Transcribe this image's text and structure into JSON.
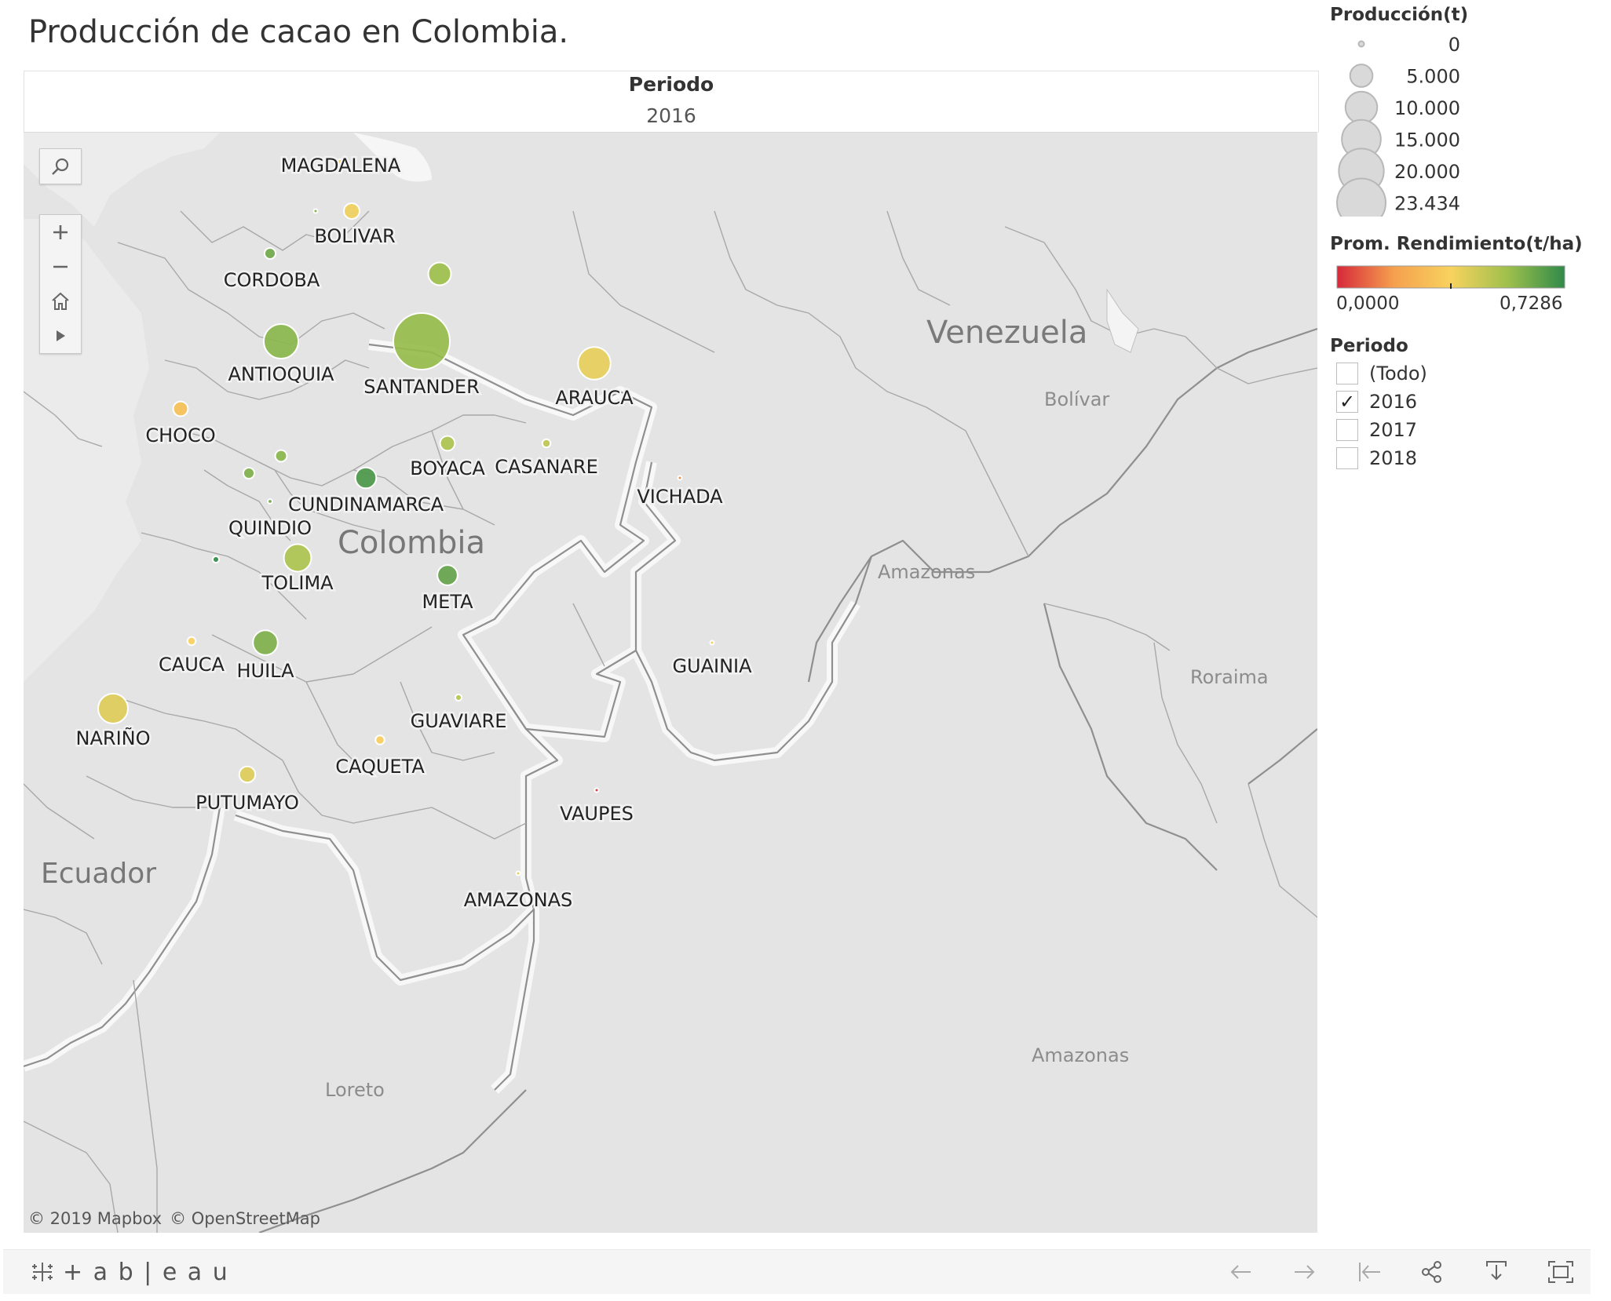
{
  "title": "Producción de cacao en Colombia.",
  "period_header": {
    "label": "Periodo",
    "value": "2016"
  },
  "map": {
    "country_labels": [
      {
        "id": "venezuela",
        "text": "Venezuela"
      },
      {
        "id": "colombia",
        "text": "Colombia"
      },
      {
        "id": "ecuador",
        "text": "Ecuador"
      }
    ],
    "region_labels": [
      {
        "id": "bolivar-ve",
        "text": "Bolívar"
      },
      {
        "id": "amazonas-ve",
        "text": "Amazonas"
      },
      {
        "id": "roraima",
        "text": "Roraima"
      },
      {
        "id": "amazonas-br",
        "text": "Amazonas"
      },
      {
        "id": "loreto",
        "text": "Loreto"
      }
    ],
    "departments": [
      {
        "name": "MAGDALENA",
        "production_t": 700,
        "yield_t_ha": 0.33
      },
      {
        "name": "BOLIVAR",
        "production_t": 1800,
        "yield_t_ha": 0.38
      },
      {
        "name": "CORDOBA",
        "production_t": 900,
        "yield_t_ha": 0.62
      },
      {
        "name": "ANTIOQUIA",
        "production_t": 8800,
        "yield_t_ha": 0.58
      },
      {
        "name": "SANTANDER",
        "production_t": 23434,
        "yield_t_ha": 0.56
      },
      {
        "name": "ARAUCA",
        "production_t": 7800,
        "yield_t_ha": 0.4
      },
      {
        "name": "CHOCO",
        "production_t": 1600,
        "yield_t_ha": 0.3
      },
      {
        "name": "BOYACA",
        "production_t": 1600,
        "yield_t_ha": 0.52
      },
      {
        "name": "CASANARE",
        "production_t": 500,
        "yield_t_ha": 0.48
      },
      {
        "name": "VICHADA",
        "production_t": 80,
        "yield_t_ha": 0.15
      },
      {
        "name": "CUNDINAMARCA",
        "production_t": 3200,
        "yield_t_ha": 0.68
      },
      {
        "name": "QUINDIO",
        "production_t": 150,
        "yield_t_ha": 0.62
      },
      {
        "name": "TOLIMA",
        "production_t": 5500,
        "yield_t_ha": 0.52
      },
      {
        "name": "META",
        "production_t": 3000,
        "yield_t_ha": 0.64
      },
      {
        "name": "CAUCA",
        "production_t": 500,
        "yield_t_ha": 0.36
      },
      {
        "name": "HUILA",
        "production_t": 4500,
        "yield_t_ha": 0.6
      },
      {
        "name": "GUAINIA",
        "production_t": 60,
        "yield_t_ha": 0.38
      },
      {
        "name": "NARIÑO",
        "production_t": 6500,
        "yield_t_ha": 0.42
      },
      {
        "name": "GUAVIARE",
        "production_t": 300,
        "yield_t_ha": 0.5
      },
      {
        "name": "CAQUETA",
        "production_t": 600,
        "yield_t_ha": 0.35
      },
      {
        "name": "PUTUMAYO",
        "production_t": 1900,
        "yield_t_ha": 0.42
      },
      {
        "name": "VAUPES",
        "production_t": 50,
        "yield_t_ha": 0.02
      },
      {
        "name": "AMAZONAS",
        "production_t": 30,
        "yield_t_ha": 0.4
      }
    ],
    "unlabeled_points": [
      {
        "production_t": 100,
        "yield_t_ha": 0.6
      },
      {
        "production_t": 3800,
        "yield_t_ha": 0.55
      },
      {
        "production_t": 1000,
        "yield_t_ha": 0.58
      },
      {
        "production_t": 900,
        "yield_t_ha": 0.6
      },
      {
        "production_t": 300,
        "yield_t_ha": 0.72
      }
    ],
    "attribution": [
      "© 2019 Mapbox",
      "© OpenStreetMap"
    ]
  },
  "legend_size": {
    "title": "Producción(t)",
    "items": [
      "0",
      "5.000",
      "10.000",
      "15.000",
      "20.000",
      "23.434"
    ],
    "values": [
      0,
      5000,
      10000,
      15000,
      20000,
      23434
    ]
  },
  "legend_color": {
    "title": "Prom. Rendimiento(t/ha)",
    "min_label": "0,0000",
    "max_label": "0,7286",
    "min": 0.0,
    "max": 0.7286,
    "colors": [
      "#d7283a",
      "#f5a04e",
      "#f8d25e",
      "#9fc04c",
      "#2f8a4a"
    ]
  },
  "legend_filter": {
    "title": "Periodo",
    "options": [
      {
        "label": "(Todo)",
        "checked": false
      },
      {
        "label": "2016",
        "checked": true
      },
      {
        "label": "2017",
        "checked": false
      },
      {
        "label": "2018",
        "checked": false
      }
    ]
  },
  "toolbar": {
    "brand": "+ a b | e a u"
  }
}
